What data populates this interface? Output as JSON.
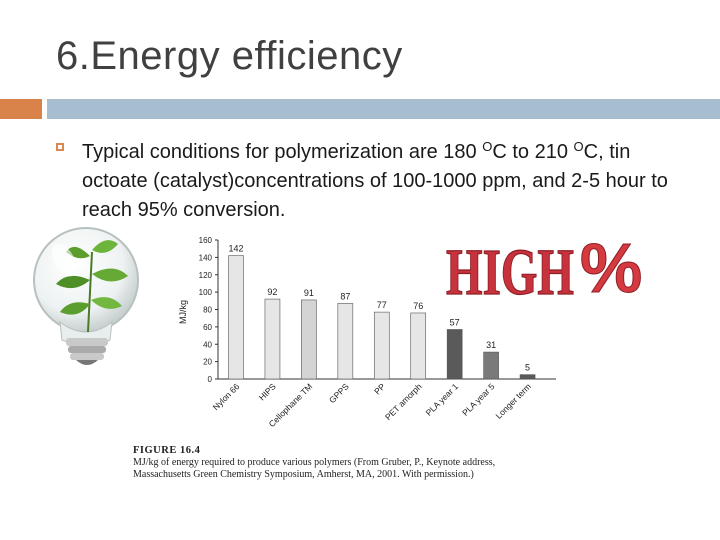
{
  "slide": {
    "title": "6.Energy efficiency",
    "bullet": {
      "p1": "Typical conditions for polymerization are 180 ",
      "sup1": "O",
      "p2": "C to 210 ",
      "sup2": "O",
      "p3": "C, tin octoate (catalyst)concentrations of 100-1000 ppm, and 2-5 hour to reach 95% conversion."
    },
    "high_text": "HIGH",
    "percent_text": "%"
  },
  "colors": {
    "accent_orange": "#d9824a",
    "accent_blue": "#a7bed1",
    "high_red": "#c8323c"
  },
  "chart_data": {
    "type": "bar",
    "ylabel": "MJ/kg",
    "ylim": [
      0,
      160
    ],
    "yticks": [
      0,
      20,
      40,
      60,
      80,
      100,
      120,
      140,
      160
    ],
    "categories": [
      "Nylon 66",
      "HIPS",
      "Cellophane TM",
      "GPPS",
      "PP",
      "PET amorph",
      "PLA year 1",
      "PLA year 5",
      "Longer term"
    ],
    "values": [
      142,
      92,
      91,
      87,
      77,
      76,
      57,
      31,
      5
    ],
    "bar_colors": [
      "#e6e6e6",
      "#e6e6e6",
      "#d4d4d4",
      "#e6e6e6",
      "#e6e6e6",
      "#e6e6e6",
      "#5a5a5a",
      "#7a7a7a",
      "#5a5a5a"
    ],
    "caption_label": "FIGURE 16.4",
    "caption_line1": "MJ/kg of energy required to produce various polymers (From Gruber, P., Keynote address,",
    "caption_line2": "Massachusetts Green Chemistry Symposium, Amherst, MA, 2001. With permission.)"
  }
}
